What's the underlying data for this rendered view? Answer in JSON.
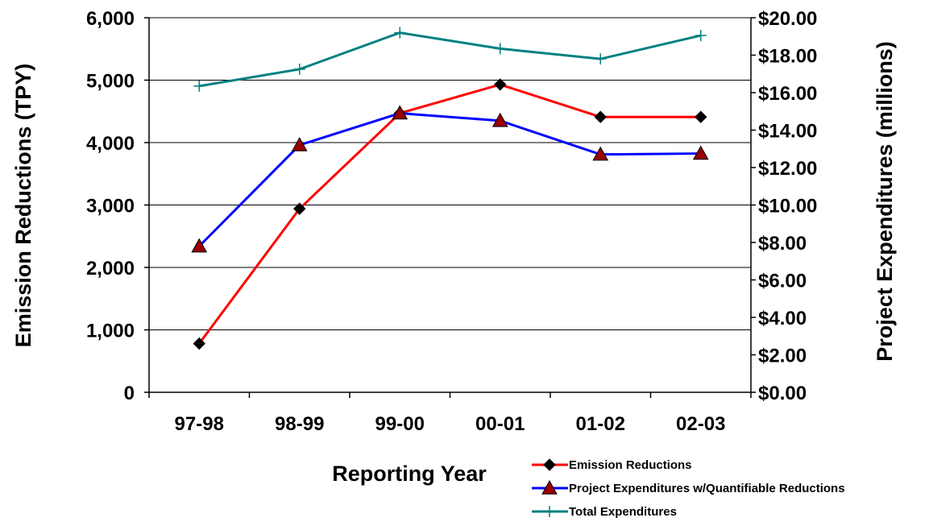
{
  "chart_data": {
    "type": "line",
    "categories": [
      "97-98",
      "98-99",
      "99-00",
      "00-01",
      "01-02",
      "02-03"
    ],
    "xlabel": "Reporting Year",
    "ylabel_left": "Emission Reductions (TPY)",
    "ylabel_right": "Project Expenditures (millions)",
    "ylim_left": [
      0,
      6000
    ],
    "ylim_right": [
      0,
      20
    ],
    "yticks_left": [
      "0",
      "1,000",
      "2,000",
      "3,000",
      "4,000",
      "5,000",
      "6,000"
    ],
    "yticks_right": [
      "$0.00",
      "$2.00",
      "$4.00",
      "$6.00",
      "$8.00",
      "$10.00",
      "$12.00",
      "$14.00",
      "$16.00",
      "$18.00",
      "$20.00"
    ],
    "grid": "horizontal",
    "legend_position": "bottom-right",
    "series": [
      {
        "name": "Emission Reductions",
        "axis": "left",
        "color": "#ff0000",
        "marker": "diamond",
        "values": [
          780,
          2940,
          4470,
          4930,
          4410,
          4410
        ]
      },
      {
        "name": "Project Expenditures w/Quantifiable Reductions",
        "axis": "right",
        "color": "#0000ff",
        "marker": "triangle",
        "values": [
          7.8,
          13.2,
          14.9,
          14.5,
          12.7,
          12.75
        ]
      },
      {
        "name": "Total Expenditures",
        "axis": "right",
        "color": "#008080",
        "marker": "cross",
        "values": [
          16.35,
          17.25,
          19.2,
          18.35,
          17.8,
          19.05
        ]
      }
    ]
  }
}
